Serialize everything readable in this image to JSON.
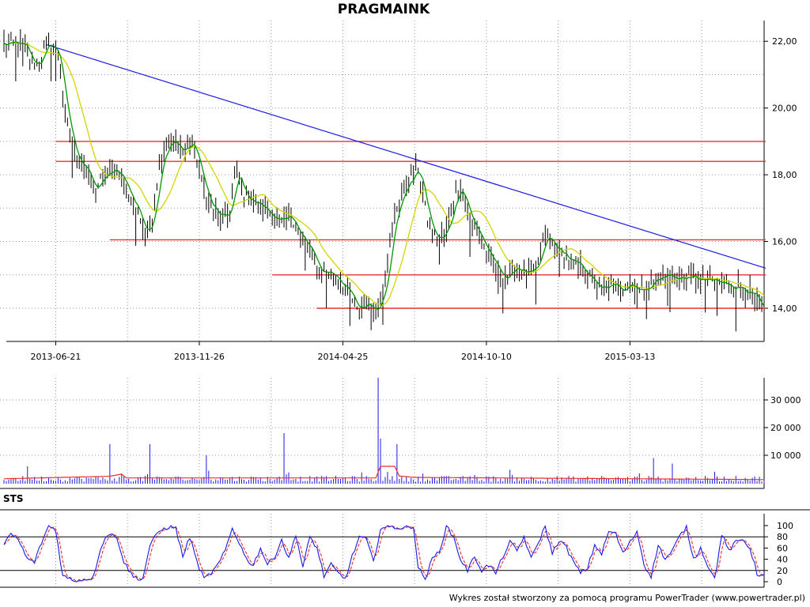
{
  "title": "PRAGMAINK",
  "footer": "Wykres został stworzony za pomocą programu PowerTrader (www.powertrader.pl)",
  "colors": {
    "price": "#000000",
    "ma_short": "#009900",
    "ma_long": "#d4d400",
    "resistance": "#e83030",
    "trendline": "#1a1ae6",
    "volume": "#1a1ae6",
    "volume_avg": "#e83030",
    "sts_k": "#1a1ae6",
    "sts_d": "#e83030",
    "grid": "#9a9a9a"
  },
  "chart_data": [
    {
      "type": "line",
      "panel": "price",
      "title": "PRAGMAINK",
      "x_tick_labels": [
        "2013-06-21",
        "2013-11-26",
        "2014-04-25",
        "2014-10-10",
        "2015-03-13"
      ],
      "y_tick_labels": [
        "14,00",
        "16,00",
        "18,00",
        "20,00",
        "22,00"
      ],
      "ylim": [
        13.1,
        22.1
      ],
      "grid": true,
      "price_anchors": [
        [
          0,
          21.9
        ],
        [
          8,
          21.9
        ],
        [
          12,
          21.3
        ],
        [
          15,
          21.4
        ],
        [
          18,
          21.9
        ],
        [
          23,
          21.7
        ],
        [
          26,
          19.8
        ],
        [
          30,
          18.6
        ],
        [
          34,
          18.3
        ],
        [
          38,
          17.5
        ],
        [
          42,
          17.9
        ],
        [
          48,
          18.2
        ],
        [
          52,
          17.6
        ],
        [
          56,
          17.0
        ],
        [
          60,
          16.3
        ],
        [
          63,
          16.7
        ],
        [
          66,
          18.3
        ],
        [
          69,
          18.8
        ],
        [
          72,
          19.0
        ],
        [
          76,
          18.7
        ],
        [
          80,
          19.0
        ],
        [
          84,
          17.8
        ],
        [
          88,
          17.0
        ],
        [
          92,
          16.7
        ],
        [
          96,
          16.8
        ],
        [
          98,
          18.1
        ],
        [
          102,
          17.4
        ],
        [
          106,
          17.2
        ],
        [
          110,
          17.0
        ],
        [
          114,
          16.8
        ],
        [
          118,
          16.5
        ],
        [
          122,
          16.8
        ],
        [
          126,
          16.1
        ],
        [
          130,
          15.7
        ],
        [
          134,
          15.1
        ],
        [
          138,
          15.1
        ],
        [
          142,
          14.9
        ],
        [
          146,
          14.5
        ],
        [
          150,
          13.9
        ],
        [
          154,
          14.2
        ],
        [
          158,
          13.9
        ],
        [
          162,
          14.9
        ],
        [
          166,
          16.8
        ],
        [
          170,
          17.6
        ],
        [
          174,
          18.0
        ],
        [
          176,
          18.2
        ],
        [
          180,
          16.6
        ],
        [
          184,
          16.0
        ],
        [
          188,
          16.3
        ],
        [
          192,
          17.5
        ],
        [
          194,
          17.7
        ],
        [
          198,
          16.6
        ],
        [
          202,
          16.2
        ],
        [
          206,
          15.5
        ],
        [
          210,
          15.1
        ],
        [
          214,
          14.9
        ],
        [
          218,
          15.3
        ],
        [
          222,
          15.0
        ],
        [
          226,
          15.1
        ],
        [
          230,
          16.2
        ],
        [
          234,
          15.8
        ],
        [
          238,
          15.6
        ],
        [
          242,
          15.3
        ],
        [
          246,
          15.2
        ],
        [
          250,
          14.8
        ],
        [
          254,
          14.5
        ],
        [
          258,
          14.7
        ],
        [
          262,
          14.6
        ],
        [
          266,
          14.8
        ],
        [
          270,
          14.5
        ],
        [
          274,
          14.7
        ],
        [
          278,
          14.9
        ],
        [
          282,
          15.0
        ],
        [
          286,
          14.9
        ],
        [
          290,
          14.9
        ],
        [
          294,
          14.9
        ],
        [
          298,
          14.8
        ],
        [
          302,
          14.8
        ],
        [
          306,
          14.7
        ],
        [
          310,
          14.7
        ],
        [
          314,
          14.6
        ],
        [
          318,
          14.4
        ],
        [
          322,
          13.9
        ],
        [
          323,
          13.7
        ]
      ],
      "horizontal_levels": [
        {
          "y": 19.0,
          "x_start": 22,
          "x_end": 323
        },
        {
          "y": 18.4,
          "x_start": 22,
          "x_end": 323
        },
        {
          "y": 16.05,
          "x_start": 45,
          "x_end": 323
        },
        {
          "y": 15.0,
          "x_start": 114,
          "x_end": 323
        },
        {
          "y": 14.0,
          "x_start": 133,
          "x_end": 323
        }
      ],
      "trendline": {
        "x_start": 18,
        "y_start": 21.9,
        "x_end": 323,
        "y_end": 15.2
      }
    },
    {
      "type": "bar",
      "panel": "volume",
      "y_tick_labels": [
        "10 000",
        "20 000",
        "30 000"
      ],
      "ylim": [
        0,
        38000
      ],
      "spikes": [
        [
          10,
          6000
        ],
        [
          45,
          14000
        ],
        [
          62,
          14000
        ],
        [
          86,
          10000
        ],
        [
          119,
          18000
        ],
        [
          159,
          38000
        ],
        [
          160,
          16000
        ],
        [
          167,
          14000
        ],
        [
          276,
          9000
        ],
        [
          284,
          7000
        ]
      ],
      "baseline_volume": 1500,
      "avg_line": [
        [
          0,
          1500
        ],
        [
          45,
          2400
        ],
        [
          50,
          3200
        ],
        [
          52,
          1800
        ],
        [
          158,
          1800
        ],
        [
          160,
          6000
        ],
        [
          166,
          6000
        ],
        [
          168,
          2500
        ],
        [
          174,
          2000
        ],
        [
          323,
          1200
        ]
      ]
    },
    {
      "type": "line",
      "panel": "STS",
      "title": "STS",
      "y_tick_labels": [
        "0",
        "20",
        "40",
        "60",
        "80",
        "100"
      ],
      "ylim": [
        0,
        100
      ],
      "levels": [
        20,
        80
      ],
      "k_anchors": [
        [
          0,
          65
        ],
        [
          3,
          85
        ],
        [
          6,
          75
        ],
        [
          10,
          40
        ],
        [
          13,
          35
        ],
        [
          16,
          70
        ],
        [
          19,
          100
        ],
        [
          22,
          92
        ],
        [
          25,
          10
        ],
        [
          30,
          2
        ],
        [
          35,
          5
        ],
        [
          38,
          8
        ],
        [
          41,
          60
        ],
        [
          44,
          85
        ],
        [
          48,
          80
        ],
        [
          51,
          35
        ],
        [
          55,
          8
        ],
        [
          59,
          5
        ],
        [
          62,
          65
        ],
        [
          66,
          90
        ],
        [
          70,
          98
        ],
        [
          73,
          95
        ],
        [
          76,
          45
        ],
        [
          79,
          80
        ],
        [
          82,
          35
        ],
        [
          85,
          5
        ],
        [
          88,
          15
        ],
        [
          91,
          30
        ],
        [
          94,
          55
        ],
        [
          97,
          95
        ],
        [
          100,
          70
        ],
        [
          103,
          40
        ],
        [
          106,
          30
        ],
        [
          109,
          60
        ],
        [
          112,
          30
        ],
        [
          115,
          45
        ],
        [
          118,
          75
        ],
        [
          121,
          40
        ],
        [
          124,
          85
        ],
        [
          127,
          25
        ],
        [
          130,
          80
        ],
        [
          133,
          60
        ],
        [
          136,
          10
        ],
        [
          139,
          30
        ],
        [
          142,
          15
        ],
        [
          145,
          5
        ],
        [
          148,
          45
        ],
        [
          151,
          80
        ],
        [
          154,
          75
        ],
        [
          157,
          35
        ],
        [
          160,
          95
        ],
        [
          165,
          98
        ],
        [
          170,
          95
        ],
        [
          174,
          100
        ],
        [
          176,
          25
        ],
        [
          179,
          5
        ],
        [
          182,
          40
        ],
        [
          185,
          55
        ],
        [
          188,
          98
        ],
        [
          191,
          80
        ],
        [
          194,
          40
        ],
        [
          197,
          20
        ],
        [
          200,
          45
        ],
        [
          203,
          20
        ],
        [
          206,
          30
        ],
        [
          209,
          15
        ],
        [
          212,
          45
        ],
        [
          215,
          70
        ],
        [
          218,
          55
        ],
        [
          221,
          80
        ],
        [
          224,
          40
        ],
        [
          227,
          70
        ],
        [
          230,
          98
        ],
        [
          233,
          50
        ],
        [
          236,
          75
        ],
        [
          239,
          60
        ],
        [
          242,
          35
        ],
        [
          245,
          15
        ],
        [
          248,
          25
        ],
        [
          251,
          65
        ],
        [
          254,
          50
        ],
        [
          257,
          90
        ],
        [
          260,
          85
        ],
        [
          263,
          50
        ],
        [
          266,
          70
        ],
        [
          269,
          90
        ],
        [
          272,
          30
        ],
        [
          275,
          10
        ],
        [
          278,
          65
        ],
        [
          281,
          40
        ],
        [
          284,
          55
        ],
        [
          287,
          80
        ],
        [
          290,
          98
        ],
        [
          293,
          40
        ],
        [
          296,
          60
        ],
        [
          299,
          30
        ],
        [
          302,
          5
        ],
        [
          305,
          85
        ],
        [
          308,
          55
        ],
        [
          311,
          70
        ],
        [
          314,
          75
        ],
        [
          317,
          60
        ],
        [
          320,
          15
        ],
        [
          323,
          10
        ]
      ]
    }
  ]
}
